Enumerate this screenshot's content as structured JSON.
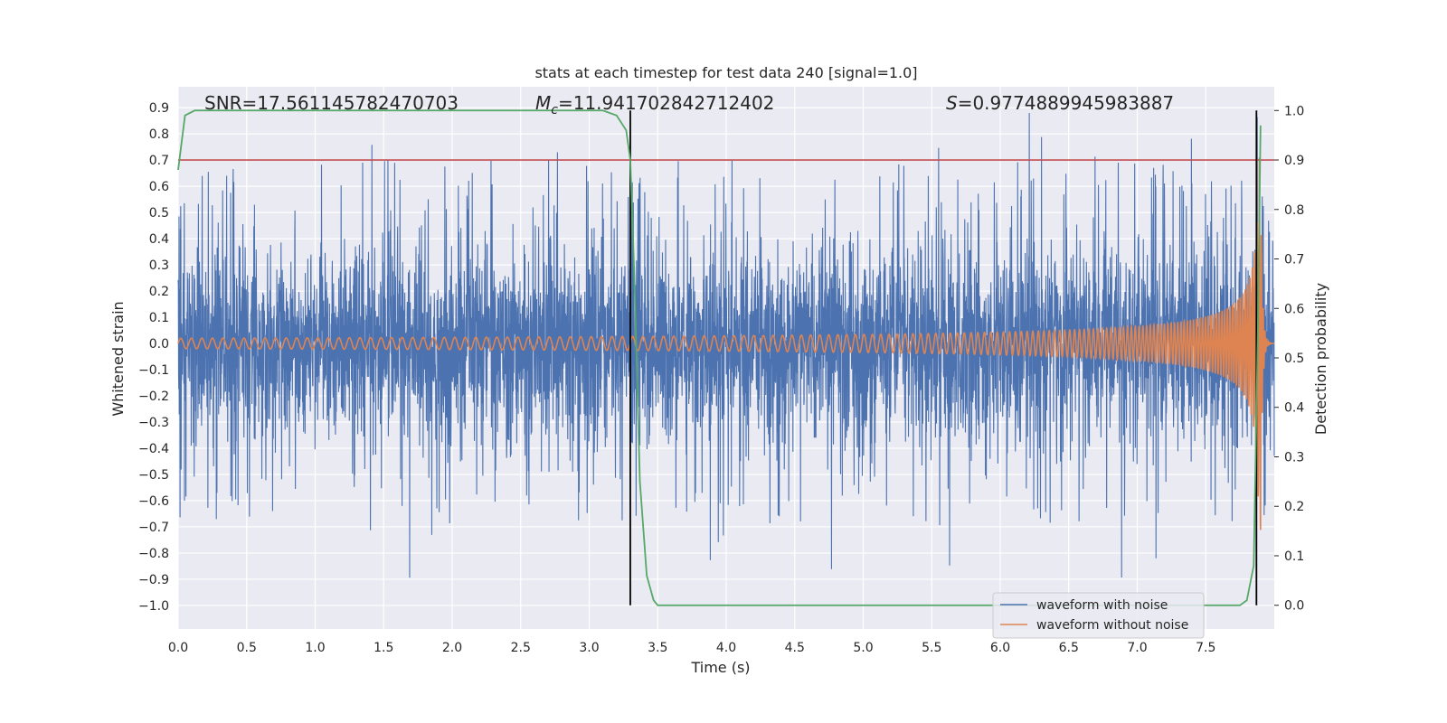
{
  "chart_data": {
    "type": "line",
    "title": "stats at each timestep for test data 240 [signal=1.0]",
    "xlabel": "Time (s)",
    "ylabel": "Whitened strain",
    "y2label": "Detection probability",
    "xlim": [
      0.0,
      8.0
    ],
    "ylim": [
      -1.09,
      0.98
    ],
    "y2lim": [
      -0.048,
      1.048
    ],
    "xticks": [
      "0.0",
      "0.5",
      "1.0",
      "1.5",
      "2.0",
      "2.5",
      "3.0",
      "3.5",
      "4.0",
      "4.5",
      "5.0",
      "5.5",
      "6.0",
      "6.5",
      "7.0",
      "7.5"
    ],
    "yticks": [
      "0.9",
      "0.8",
      "0.7",
      "0.6",
      "0.5",
      "0.4",
      "0.3",
      "0.2",
      "0.1",
      "0.0",
      "−0.1",
      "−0.2",
      "−0.3",
      "−0.4",
      "−0.5",
      "−0.6",
      "−0.7",
      "−0.8",
      "−0.9",
      "−1.0"
    ],
    "y2ticks": [
      "1.0",
      "0.9",
      "0.8",
      "0.7",
      "0.6",
      "0.5",
      "0.4",
      "0.3",
      "0.2",
      "0.1",
      "0.0"
    ],
    "annotations": {
      "snr": "SNR=17.561145782470703",
      "mc_symbol": "M",
      "mc_sub": "c",
      "mc_value": "=11.941702842712402",
      "s_symbol": "S",
      "s_value": "=0.9774889945983887"
    },
    "grid": true,
    "legend_position": "lower-right",
    "series": [
      {
        "name": "waveform with noise",
        "color": "#4c72b0",
        "axis": "left",
        "description_of_shape": "dense noise band roughly between -0.45 and 0.45 with spikes up to 0.88 and down to -1.0",
        "envelope_core": 0.35,
        "max_spike": 0.88,
        "min_spike": -1.0
      },
      {
        "name": "waveform without noise",
        "color": "#dd8452",
        "axis": "left",
        "chirp": {
          "start_amplitude": 0.02,
          "peak_amplitude": 0.72,
          "peak_time": 7.9,
          "start_freq_hz": 13,
          "end_freq_hz": 60
        }
      },
      {
        "axis": "right",
        "color": "#55a868",
        "x": [
          0.0,
          0.05,
          0.12,
          0.2,
          3.0,
          3.1,
          3.2,
          3.27,
          3.3,
          3.33,
          3.37,
          3.42,
          3.47,
          3.5,
          3.55,
          7.7,
          7.75,
          7.8,
          7.85,
          7.88,
          7.9
        ],
        "y": [
          0.88,
          0.99,
          1.0,
          1.0,
          1.0,
          1.0,
          0.99,
          0.96,
          0.9,
          0.66,
          0.25,
          0.06,
          0.01,
          0.0,
          0.0,
          0.0,
          0.0,
          0.01,
          0.08,
          0.55,
          0.97
        ]
      },
      {
        "axis": "right",
        "color": "#c44e52",
        "type": "hline",
        "y": 0.9
      }
    ],
    "vlines": [
      {
        "x": 3.3,
        "color": "#000000"
      },
      {
        "x": 7.87,
        "color": "#000000"
      }
    ]
  }
}
